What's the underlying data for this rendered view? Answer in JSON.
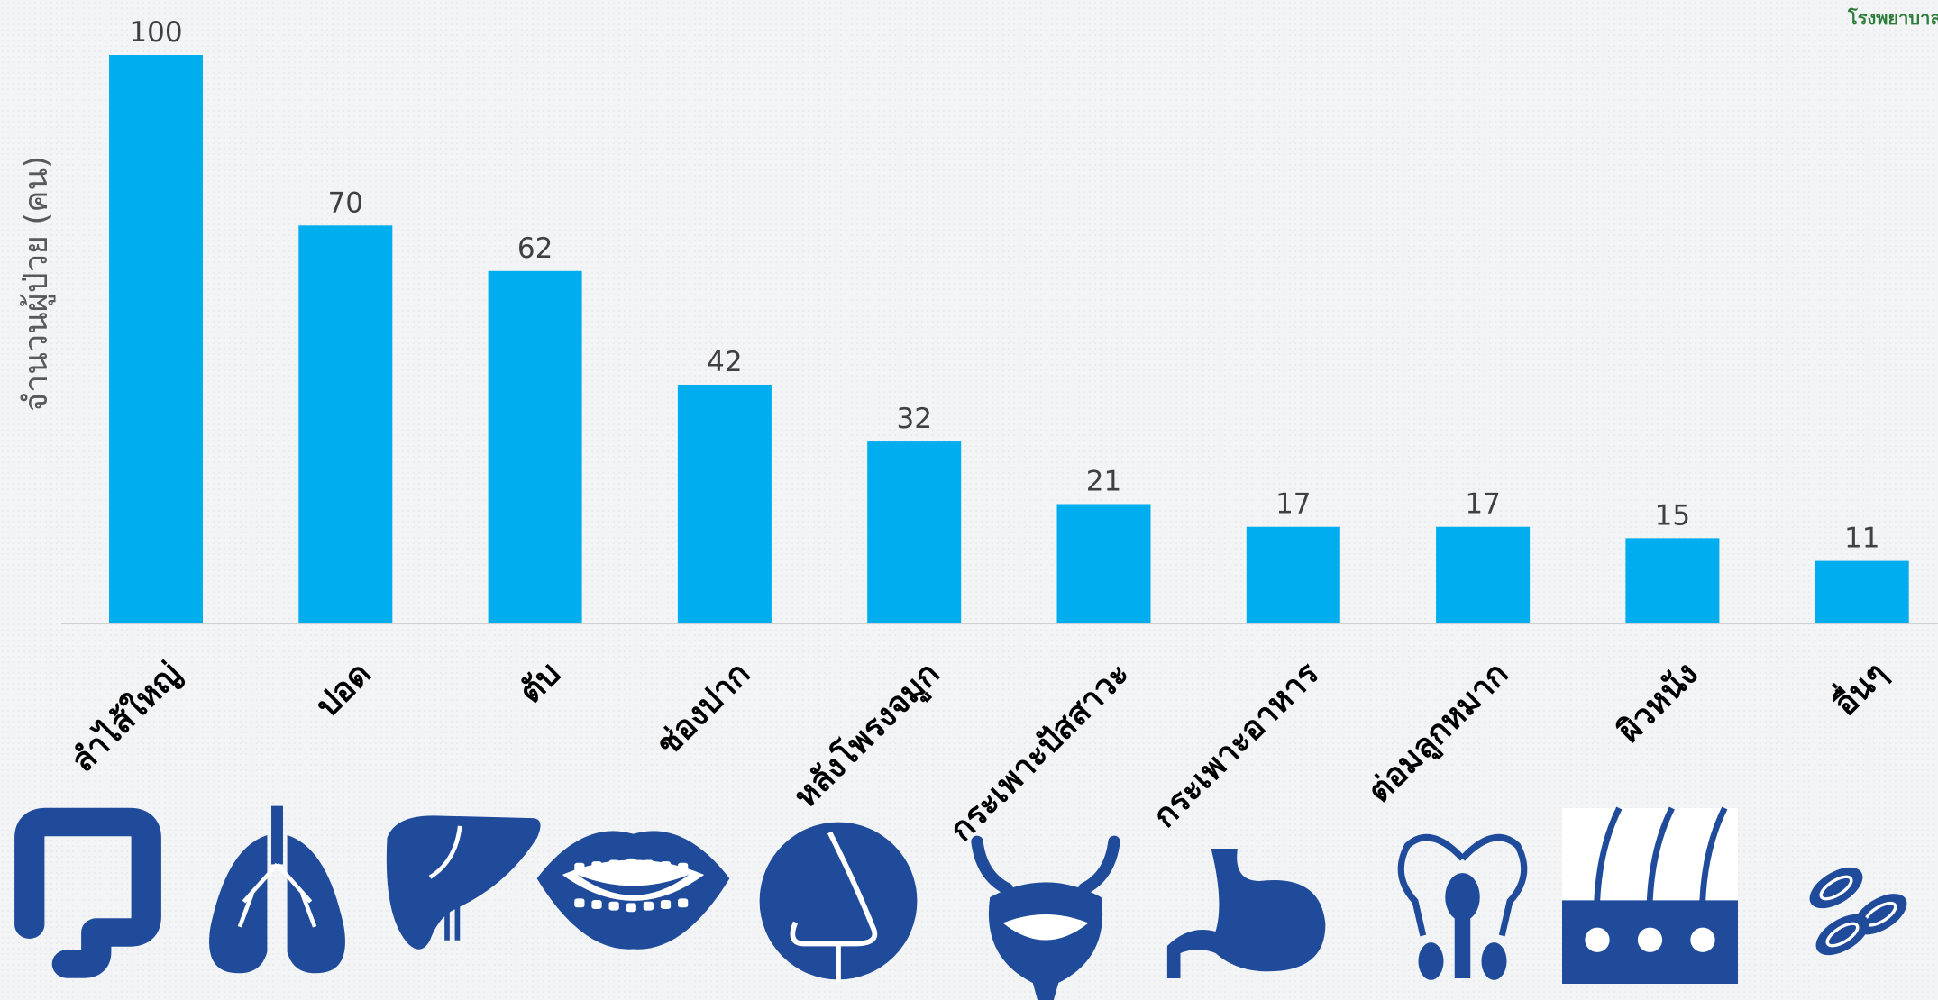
{
  "header": {
    "organization": "โรงพยาบาล"
  },
  "chart_data": {
    "type": "bar",
    "title": "",
    "xlabel": "",
    "ylabel": "จำนวนผู้ป่วย (คน)",
    "categories": [
      "ลำไส้ใหญ่",
      "ปอด",
      "ตับ",
      "ช่องปาก",
      "หลังโพรงจมูก",
      "กระเพาะปัสสาวะ",
      "กระเพาะอาหาร",
      "ต่อมลูกหมาก",
      "ผิวหนัง",
      "อื่นๆ"
    ],
    "values": [
      100,
      70,
      62,
      42,
      32,
      21,
      17,
      17,
      15,
      11
    ],
    "data_labels": [
      "100",
      "70",
      "62",
      "42",
      "32",
      "21",
      "17",
      "17",
      "15",
      "11"
    ],
    "ylim": [
      0,
      100
    ],
    "grid": false,
    "legend": "none",
    "bar_color": "#00adee",
    "icon_color": "#1f4b9a",
    "icons": [
      "colon-icon",
      "lungs-icon",
      "liver-icon",
      "mouth-icon",
      "nose-icon",
      "bladder-icon",
      "stomach-icon",
      "prostate-icon",
      "skin-icon",
      "blood-cells-icon"
    ]
  }
}
